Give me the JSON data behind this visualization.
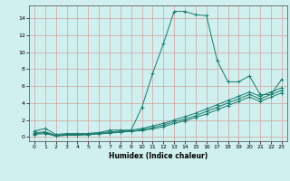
{
  "xlabel": "Humidex (Indice chaleur)",
  "bg_color": "#cff0ee",
  "line_color": "#1a7a6e",
  "grid_color": "#d4a0a0",
  "xlim": [
    -0.5,
    23.5
  ],
  "ylim": [
    -0.5,
    15.5
  ],
  "xticks": [
    0,
    1,
    2,
    3,
    4,
    5,
    6,
    7,
    8,
    9,
    10,
    11,
    12,
    13,
    14,
    15,
    16,
    17,
    18,
    19,
    20,
    21,
    22,
    23
  ],
  "yticks": [
    0,
    2,
    4,
    6,
    8,
    10,
    12,
    14
  ],
  "line1_x": [
    0,
    1,
    2,
    3,
    4,
    5,
    6,
    7,
    8,
    9,
    10,
    11,
    12,
    13,
    14,
    15,
    16,
    17,
    18,
    19,
    20,
    21,
    22,
    23
  ],
  "line1_y": [
    0.7,
    1.0,
    0.3,
    0.4,
    0.4,
    0.4,
    0.5,
    0.8,
    0.8,
    0.8,
    3.5,
    7.5,
    11.0,
    14.8,
    14.8,
    14.4,
    14.3,
    9.0,
    6.5,
    6.5,
    7.2,
    5.0,
    5.0,
    6.8
  ],
  "line2_x": [
    0,
    1,
    2,
    3,
    4,
    5,
    6,
    7,
    8,
    9,
    10,
    11,
    12,
    13,
    14,
    15,
    16,
    17,
    18,
    19,
    20,
    21,
    22,
    23
  ],
  "line2_y": [
    0.5,
    0.6,
    0.2,
    0.3,
    0.3,
    0.4,
    0.5,
    0.6,
    0.7,
    0.8,
    1.0,
    1.3,
    1.6,
    2.0,
    2.4,
    2.8,
    3.3,
    3.8,
    4.3,
    4.8,
    5.3,
    4.8,
    5.3,
    5.8
  ],
  "line3_x": [
    0,
    1,
    2,
    3,
    4,
    5,
    6,
    7,
    8,
    9,
    10,
    11,
    12,
    13,
    14,
    15,
    16,
    17,
    18,
    19,
    20,
    21,
    22,
    23
  ],
  "line3_y": [
    0.4,
    0.5,
    0.15,
    0.25,
    0.25,
    0.3,
    0.4,
    0.5,
    0.6,
    0.7,
    0.85,
    1.1,
    1.4,
    1.8,
    2.1,
    2.5,
    3.0,
    3.5,
    4.0,
    4.5,
    5.0,
    4.5,
    5.0,
    5.5
  ],
  "line4_x": [
    0,
    1,
    2,
    3,
    4,
    5,
    6,
    7,
    8,
    9,
    10,
    11,
    12,
    13,
    14,
    15,
    16,
    17,
    18,
    19,
    20,
    21,
    22,
    23
  ],
  "line4_y": [
    0.3,
    0.4,
    0.1,
    0.2,
    0.2,
    0.25,
    0.35,
    0.45,
    0.55,
    0.65,
    0.75,
    0.95,
    1.2,
    1.6,
    1.9,
    2.3,
    2.7,
    3.2,
    3.7,
    4.2,
    4.7,
    4.2,
    4.7,
    5.2
  ]
}
